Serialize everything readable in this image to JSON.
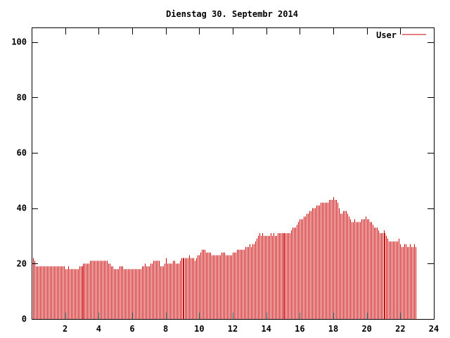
{
  "chart_data": {
    "type": "bar",
    "title": "Dienstag 30. Septembr 2014",
    "xlabel": "",
    "ylabel": "",
    "xlim": [
      0,
      24
    ],
    "ylim": [
      0,
      105
    ],
    "xticks": [
      2,
      4,
      6,
      8,
      10,
      12,
      14,
      16,
      18,
      20,
      22,
      24
    ],
    "yticks": [
      0,
      20,
      40,
      60,
      80,
      100
    ],
    "grid": false,
    "legend_position": "top-right",
    "series": [
      {
        "name": "User",
        "color": "#cc0000",
        "interval_minutes": 5,
        "values": [
          23,
          22,
          21,
          19,
          19,
          19,
          19,
          19,
          19,
          19,
          19,
          19,
          19,
          19,
          19,
          19,
          19,
          19,
          19,
          19,
          19,
          19,
          19,
          19,
          18,
          18,
          19,
          18,
          18,
          18,
          18,
          18,
          18,
          18,
          19,
          19,
          19,
          20,
          20,
          20,
          20,
          20,
          21,
          21,
          21,
          21,
          21,
          21,
          21,
          21,
          21,
          21,
          21,
          21,
          21,
          20,
          20,
          19,
          19,
          18,
          18,
          18,
          18,
          19,
          19,
          19,
          18,
          18,
          18,
          18,
          18,
          18,
          18,
          18,
          18,
          18,
          18,
          18,
          18,
          19,
          19,
          20,
          19,
          19,
          19,
          20,
          20,
          21,
          21,
          21,
          21,
          21,
          19,
          19,
          19,
          20,
          22,
          20,
          20,
          20,
          20,
          21,
          21,
          20,
          20,
          20,
          21,
          22,
          22,
          22,
          22,
          22,
          22,
          23,
          22,
          22,
          22,
          21,
          22,
          23,
          23,
          24,
          25,
          25,
          25,
          24,
          24,
          24,
          24,
          23,
          23,
          23,
          23,
          23,
          23,
          23,
          24,
          24,
          24,
          23,
          23,
          23,
          23,
          23,
          24,
          24,
          24,
          25,
          25,
          25,
          25,
          25,
          25,
          26,
          26,
          26,
          27,
          26,
          27,
          27,
          28,
          29,
          30,
          31,
          30,
          31,
          30,
          30,
          30,
          30,
          30,
          31,
          30,
          31,
          30,
          30,
          31,
          31,
          31,
          31,
          31,
          31,
          31,
          31,
          31,
          31,
          32,
          33,
          33,
          33,
          34,
          35,
          36,
          36,
          36,
          37,
          37,
          38,
          38,
          39,
          39,
          40,
          40,
          40,
          41,
          41,
          41,
          42,
          42,
          42,
          42,
          42,
          42,
          43,
          43,
          43,
          44,
          43,
          43,
          42,
          40,
          38,
          38,
          39,
          39,
          39,
          38,
          37,
          36,
          35,
          35,
          36,
          35,
          35,
          35,
          35,
          36,
          36,
          36,
          37,
          36,
          36,
          35,
          35,
          34,
          33,
          33,
          33,
          32,
          31,
          31,
          31,
          32,
          31,
          30,
          29,
          28,
          28,
          28,
          28,
          28,
          28,
          28,
          29,
          27,
          26,
          26,
          27,
          27,
          26,
          26,
          27,
          26,
          26,
          27,
          26
        ]
      }
    ]
  }
}
